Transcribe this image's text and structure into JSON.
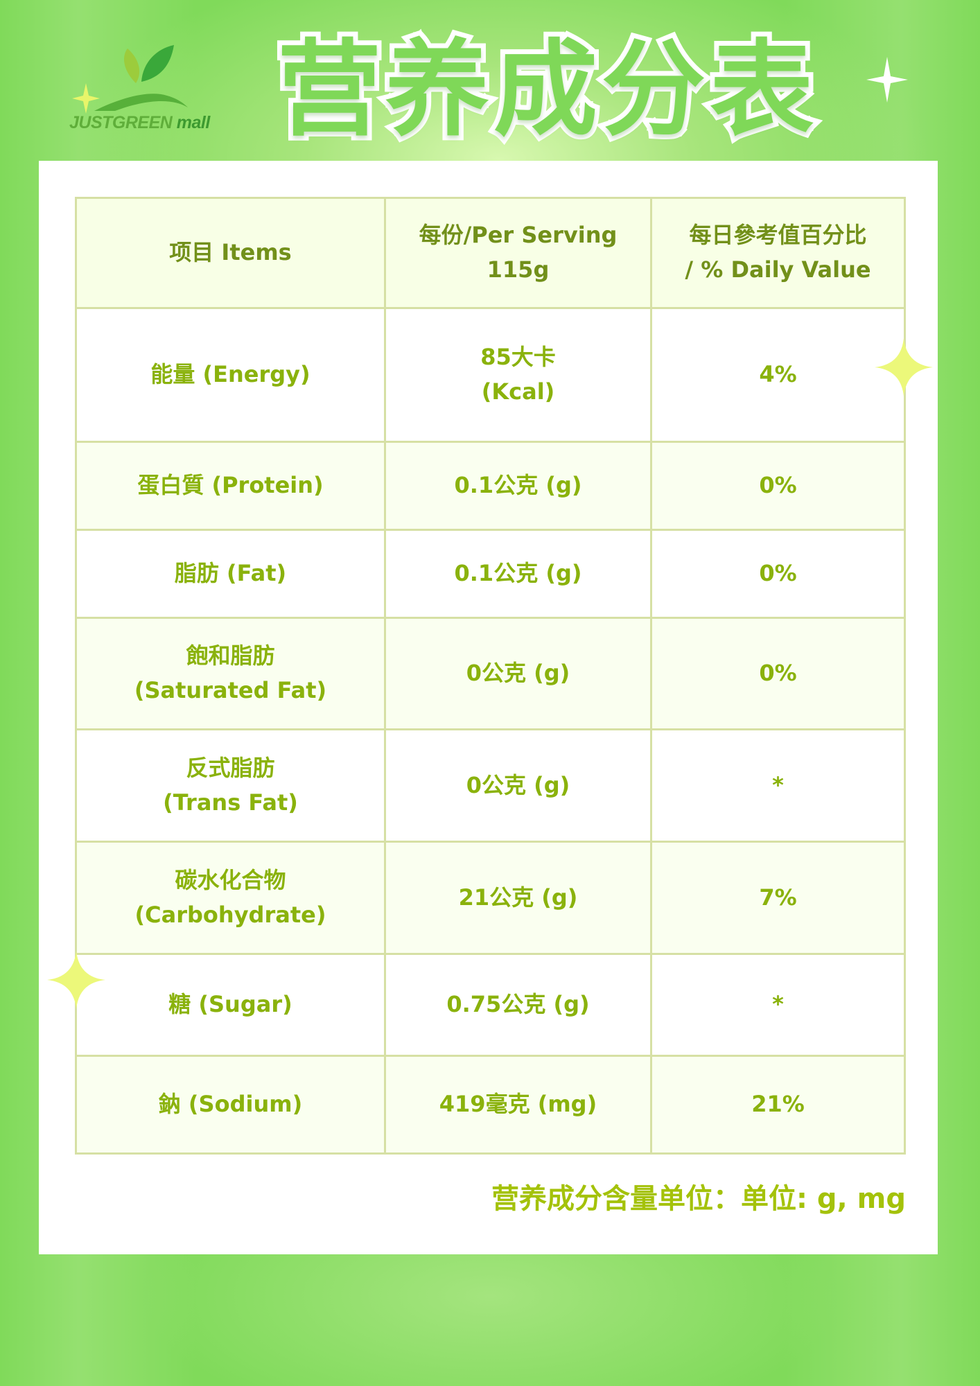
{
  "brand": {
    "logo_text": "JUSTGREEN",
    "logo_suffix": "mall"
  },
  "title": "营养成分表",
  "table": {
    "headers": [
      {
        "line1": "项目 Items",
        "line2": ""
      },
      {
        "line1": "每份/Per Serving",
        "line2": "115g"
      },
      {
        "line1": "每日參考值百分比",
        "line2": "/ % Daily Value"
      }
    ],
    "rows": [
      {
        "item_zh": "能量 (Energy)",
        "item_en": "",
        "amount": "85大卡",
        "amount2": "(Kcal)",
        "dv": "4%"
      },
      {
        "item_zh": "蛋白質 (Protein)",
        "item_en": "",
        "amount": "0.1公克 (g)",
        "amount2": "",
        "dv": "0%"
      },
      {
        "item_zh": "脂肪 (Fat)",
        "item_en": "",
        "amount": "0.1公克 (g)",
        "amount2": "",
        "dv": "0%"
      },
      {
        "item_zh": "飽和脂肪",
        "item_en": "(Saturated Fat)",
        "amount": "0公克 (g)",
        "amount2": "",
        "dv": "0%"
      },
      {
        "item_zh": "反式脂肪",
        "item_en": "(Trans Fat)",
        "amount": "0公克 (g)",
        "amount2": "",
        "dv": "*"
      },
      {
        "item_zh": "碳水化合物",
        "item_en": "(Carbohydrate)",
        "amount": "21公克 (g)",
        "amount2": "",
        "dv": "7%"
      },
      {
        "item_zh": "糖 (Sugar)",
        "item_en": "",
        "amount": "0.75公克 (g)",
        "amount2": "",
        "dv": "*"
      },
      {
        "item_zh": "鈉 (Sodium)",
        "item_en": "",
        "amount": "419毫克 (mg)",
        "amount2": "",
        "dv": "21%"
      }
    ]
  },
  "footer": "营养成分含量单位：单位: g, mg",
  "colors": {
    "background": "#80da5a",
    "title": "#7fd858",
    "header_text": "#72901a",
    "cell_text": "#8ab20c",
    "border": "#d6e0a4",
    "footer": "#a4c20a"
  }
}
